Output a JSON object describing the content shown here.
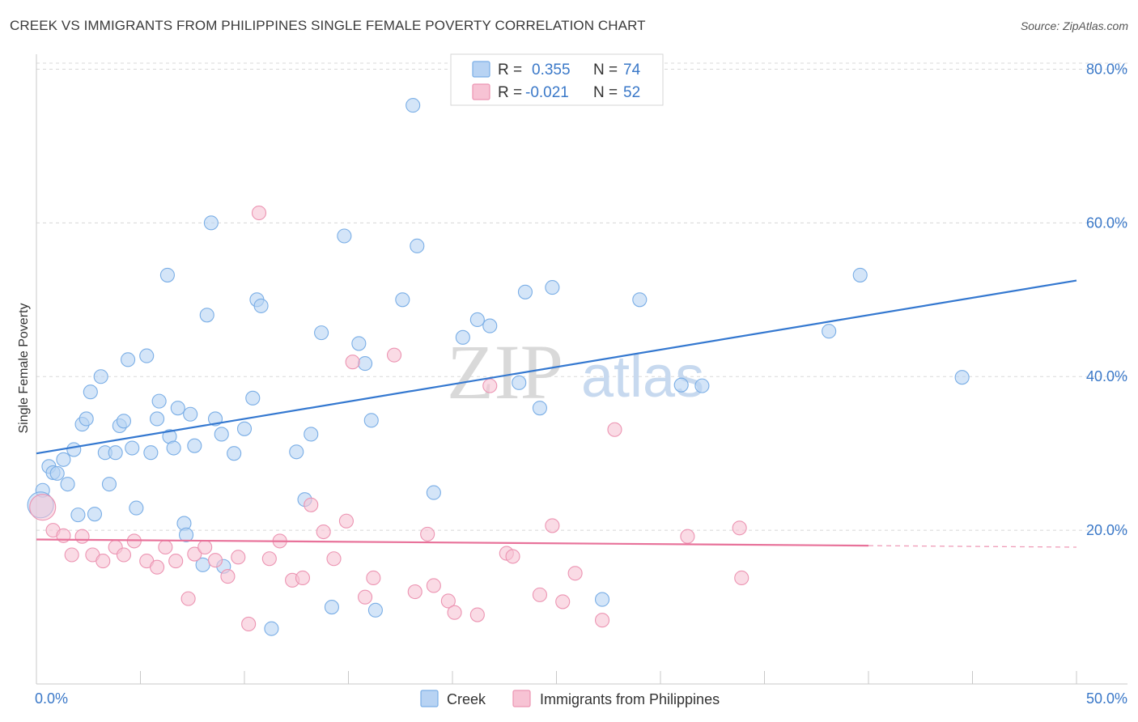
{
  "header": {
    "title": "CREEK VS IMMIGRANTS FROM PHILIPPINES SINGLE FEMALE POVERTY CORRELATION CHART",
    "source": "Source: ZipAtlas.com"
  },
  "watermark": {
    "zip": "ZIP",
    "atlas": "atlas"
  },
  "colors": {
    "blue": "#3478d0",
    "blue_fill": "#b8d3f3",
    "pink": "#e8729a",
    "pink_fill": "#f7c3d4",
    "axis_text": "#3a78c8",
    "grid": "#d8d8d8"
  },
  "legend": {
    "items": [
      {
        "r_label": "R =",
        "r_value": "0.355",
        "n_label": "N =",
        "n_value": "74"
      },
      {
        "r_label": "R =",
        "r_value": "-0.021",
        "n_label": "N =",
        "n_value": "52"
      }
    ]
  },
  "bottom_legend": [
    "Creek",
    "Immigrants from Philippines"
  ],
  "chart_data": {
    "type": "scatter",
    "title": "CREEK VS IMMIGRANTS FROM PHILIPPINES SINGLE FEMALE POVERTY CORRELATION CHART",
    "ylabel": "Single Female Poverty",
    "xlabel": "",
    "xlim": [
      0,
      50
    ],
    "ylim": [
      0,
      83
    ],
    "x_tick_labels": [
      "0.0%",
      "50.0%"
    ],
    "y_ticks": [
      20,
      40,
      60,
      80
    ],
    "y_tick_labels": [
      "20.0%",
      "40.0%",
      "60.0%",
      "80.0%"
    ],
    "grid": "horizontal dashed",
    "legend_position": "top-center",
    "series": [
      {
        "name": "Creek",
        "color": "#3478d0",
        "trend": {
          "x": [
            0,
            50
          ],
          "y": [
            30.0,
            52.5
          ],
          "style": "solid"
        },
        "points": [
          [
            0.3,
            25.2
          ],
          [
            0.6,
            28.3
          ],
          [
            0.8,
            27.5
          ],
          [
            1.0,
            27.4
          ],
          [
            1.3,
            29.2
          ],
          [
            1.5,
            26.0
          ],
          [
            1.8,
            30.5
          ],
          [
            2.0,
            22.0
          ],
          [
            2.2,
            33.8
          ],
          [
            2.4,
            34.5
          ],
          [
            2.6,
            38.0
          ],
          [
            2.8,
            22.1
          ],
          [
            3.1,
            40.0
          ],
          [
            3.3,
            30.1
          ],
          [
            3.5,
            26.0
          ],
          [
            3.8,
            30.1
          ],
          [
            4.0,
            33.6
          ],
          [
            4.2,
            34.2
          ],
          [
            4.4,
            42.2
          ],
          [
            4.6,
            30.7
          ],
          [
            4.8,
            22.9
          ],
          [
            5.3,
            42.7
          ],
          [
            5.5,
            30.1
          ],
          [
            5.8,
            34.5
          ],
          [
            5.9,
            36.8
          ],
          [
            6.3,
            53.2
          ],
          [
            6.4,
            32.2
          ],
          [
            6.6,
            30.7
          ],
          [
            6.8,
            35.9
          ],
          [
            7.1,
            20.9
          ],
          [
            7.2,
            19.4
          ],
          [
            7.4,
            35.1
          ],
          [
            7.6,
            31.0
          ],
          [
            8.0,
            15.5
          ],
          [
            8.2,
            48.0
          ],
          [
            8.4,
            60.0
          ],
          [
            8.6,
            34.5
          ],
          [
            8.9,
            32.5
          ],
          [
            9.0,
            15.3
          ],
          [
            9.5,
            30.0
          ],
          [
            10.0,
            33.2
          ],
          [
            10.4,
            37.2
          ],
          [
            10.6,
            50.0
          ],
          [
            10.8,
            49.2
          ],
          [
            11.3,
            7.2
          ],
          [
            12.5,
            30.2
          ],
          [
            12.9,
            24.0
          ],
          [
            13.2,
            32.5
          ],
          [
            13.7,
            45.7
          ],
          [
            14.2,
            10.0
          ],
          [
            14.8,
            58.3
          ],
          [
            15.5,
            44.3
          ],
          [
            15.8,
            41.7
          ],
          [
            16.1,
            34.3
          ],
          [
            16.3,
            9.6
          ],
          [
            17.6,
            50.0
          ],
          [
            18.1,
            75.3
          ],
          [
            18.3,
            57.0
          ],
          [
            19.1,
            24.9
          ],
          [
            20.5,
            45.1
          ],
          [
            21.2,
            47.4
          ],
          [
            21.8,
            46.6
          ],
          [
            23.2,
            39.2
          ],
          [
            23.5,
            51.0
          ],
          [
            24.2,
            35.9
          ],
          [
            24.8,
            51.6
          ],
          [
            27.2,
            11.0
          ],
          [
            29.0,
            50.0
          ],
          [
            31.0,
            38.9
          ],
          [
            32.0,
            38.8
          ],
          [
            38.1,
            45.9
          ],
          [
            39.6,
            53.2
          ],
          [
            44.5,
            39.9
          ],
          [
            0.2,
            23.3
          ]
        ]
      },
      {
        "name": "Immigrants from Philippines",
        "color": "#e8729a",
        "trend": {
          "x": [
            0,
            40
          ],
          "y": [
            18.8,
            18.0
          ],
          "style": "solid",
          "dashed_extension_to": 50
        },
        "points": [
          [
            0.3,
            23.0
          ],
          [
            0.8,
            20.0
          ],
          [
            1.3,
            19.3
          ],
          [
            1.7,
            16.8
          ],
          [
            2.2,
            19.2
          ],
          [
            2.7,
            16.8
          ],
          [
            3.2,
            16.0
          ],
          [
            3.8,
            17.8
          ],
          [
            4.2,
            16.8
          ],
          [
            4.7,
            18.6
          ],
          [
            5.3,
            16.0
          ],
          [
            5.8,
            15.2
          ],
          [
            6.2,
            17.8
          ],
          [
            6.7,
            16.0
          ],
          [
            7.3,
            11.1
          ],
          [
            7.6,
            16.9
          ],
          [
            8.1,
            17.8
          ],
          [
            8.6,
            16.1
          ],
          [
            9.2,
            14.0
          ],
          [
            9.7,
            16.5
          ],
          [
            10.2,
            7.8
          ],
          [
            10.7,
            61.3
          ],
          [
            11.2,
            16.3
          ],
          [
            11.7,
            18.6
          ],
          [
            12.3,
            13.5
          ],
          [
            12.8,
            13.8
          ],
          [
            13.2,
            23.3
          ],
          [
            13.8,
            19.8
          ],
          [
            14.3,
            16.3
          ],
          [
            14.9,
            21.2
          ],
          [
            15.2,
            41.9
          ],
          [
            15.8,
            11.3
          ],
          [
            16.2,
            13.8
          ],
          [
            17.2,
            42.8
          ],
          [
            18.2,
            12.0
          ],
          [
            18.8,
            19.5
          ],
          [
            19.1,
            12.8
          ],
          [
            19.8,
            10.8
          ],
          [
            20.1,
            9.3
          ],
          [
            21.2,
            9.0
          ],
          [
            21.8,
            38.8
          ],
          [
            22.6,
            17.0
          ],
          [
            22.9,
            16.6
          ],
          [
            24.2,
            11.6
          ],
          [
            24.8,
            20.6
          ],
          [
            25.3,
            10.7
          ],
          [
            25.9,
            14.4
          ],
          [
            27.2,
            8.3
          ],
          [
            27.8,
            33.1
          ],
          [
            31.3,
            19.2
          ],
          [
            33.8,
            20.3
          ],
          [
            33.9,
            13.8
          ]
        ]
      }
    ]
  }
}
